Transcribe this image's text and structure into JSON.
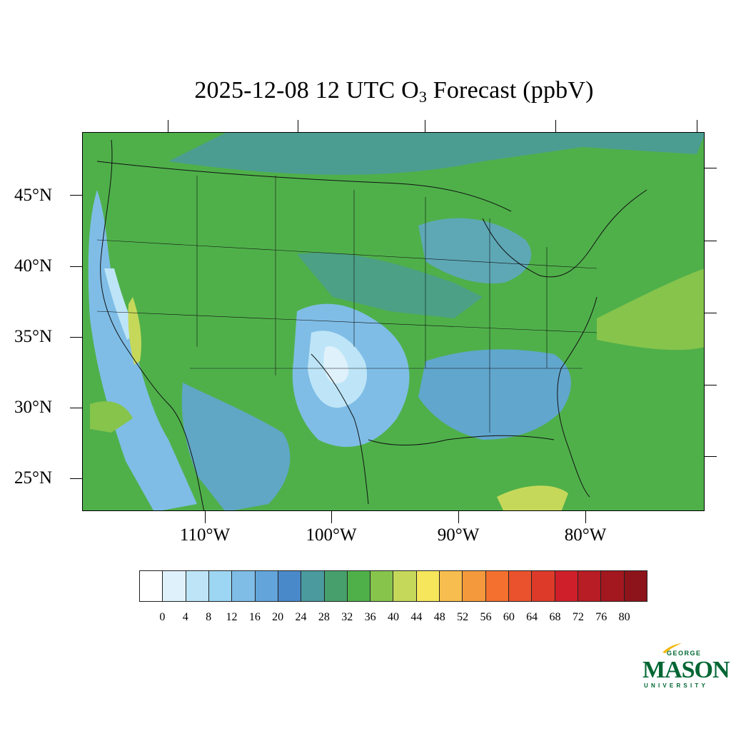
{
  "title": {
    "prefix": "2025-12-08 12 UTC O",
    "subscript": "3",
    "suffix": " Forecast (ppbV)"
  },
  "map": {
    "lat_labels": [
      "45°N",
      "40°N",
      "35°N",
      "30°N",
      "25°N"
    ],
    "lon_labels": [
      "110°W",
      "100°W",
      "90°W",
      "80°W"
    ]
  },
  "colorbar": {
    "labels": [
      "0",
      "4",
      "8",
      "12",
      "16",
      "20",
      "24",
      "28",
      "32",
      "36",
      "40",
      "44",
      "48",
      "52",
      "56",
      "60",
      "64",
      "68",
      "72",
      "76",
      "80"
    ],
    "colors": [
      "#ffffff",
      "#dff1fb",
      "#bde5f7",
      "#9dd6f3",
      "#7fbde6",
      "#63a5db",
      "#4a89c9",
      "#4a9a9e",
      "#47a06c",
      "#4fb04a",
      "#86c44c",
      "#c6d85a",
      "#f6e65c",
      "#f7bd4e",
      "#f59a3c",
      "#f3702e",
      "#e9522c",
      "#dd3a2a",
      "#cf1f2a",
      "#b81c25",
      "#a3171f",
      "#8c141a"
    ]
  },
  "logo": {
    "george": "GEORGE",
    "mason": "MASON",
    "university": "UNIVERSITY"
  }
}
